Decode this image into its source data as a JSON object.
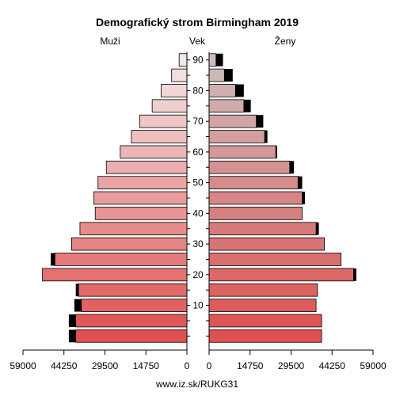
{
  "chart_data": {
    "type": "population-pyramid",
    "title": "Demografický strom Birmingham 2019",
    "left_label": "Muži",
    "center_label": "Vek",
    "right_label": "Ženy",
    "source": "www.iz.sk/RUKG31",
    "x_ticks_left": [
      59000,
      44250,
      29500,
      14750,
      0
    ],
    "x_ticks_right": [
      0,
      14750,
      29500,
      44250,
      59000
    ],
    "xlim": [
      0,
      59000
    ],
    "age_ticks": [
      10,
      20,
      30,
      40,
      50,
      60,
      70,
      80,
      90
    ],
    "age_groups": [
      "0-4",
      "5-9",
      "10-14",
      "15-19",
      "20-24",
      "25-29",
      "30-34",
      "35-39",
      "40-44",
      "45-49",
      "50-54",
      "55-59",
      "60-64",
      "65-69",
      "70-74",
      "75-79",
      "80-84",
      "85-89",
      "90+"
    ],
    "men": [
      {
        "base": 40000,
        "extra": 2500
      },
      {
        "base": 40000,
        "extra": 2500
      },
      {
        "base": 38000,
        "extra": 2500
      },
      {
        "base": 39000,
        "extra": 1000
      },
      {
        "base": 52000,
        "extra": 0
      },
      {
        "base": 47500,
        "extra": 1500
      },
      {
        "base": 41500,
        "extra": 0
      },
      {
        "base": 38500,
        "extra": 0
      },
      {
        "base": 33000,
        "extra": 0
      },
      {
        "base": 33500,
        "extra": 0
      },
      {
        "base": 32000,
        "extra": 0
      },
      {
        "base": 29000,
        "extra": 0
      },
      {
        "base": 24000,
        "extra": 0
      },
      {
        "base": 20000,
        "extra": 0
      },
      {
        "base": 17000,
        "extra": 0
      },
      {
        "base": 12500,
        "extra": 0
      },
      {
        "base": 9300,
        "extra": 0
      },
      {
        "base": 5500,
        "extra": 0
      },
      {
        "base": 2800,
        "extra": 0
      }
    ],
    "women": [
      {
        "base": 40500,
        "extra": 0
      },
      {
        "base": 40500,
        "extra": 0
      },
      {
        "base": 38500,
        "extra": 0
      },
      {
        "base": 39000,
        "extra": 0
      },
      {
        "base": 52000,
        "extra": 1000
      },
      {
        "base": 47500,
        "extra": 0
      },
      {
        "base": 41500,
        "extra": 0
      },
      {
        "base": 38500,
        "extra": 1000
      },
      {
        "base": 33500,
        "extra": 0
      },
      {
        "base": 33500,
        "extra": 1000
      },
      {
        "base": 32000,
        "extra": 1500
      },
      {
        "base": 29000,
        "extra": 1500
      },
      {
        "base": 24000,
        "extra": 500
      },
      {
        "base": 20000,
        "extra": 1000
      },
      {
        "base": 17000,
        "extra": 2500
      },
      {
        "base": 12500,
        "extra": 2500
      },
      {
        "base": 9500,
        "extra": 3000
      },
      {
        "base": 5500,
        "extra": 3000
      },
      {
        "base": 2500,
        "extra": 2500
      }
    ]
  }
}
